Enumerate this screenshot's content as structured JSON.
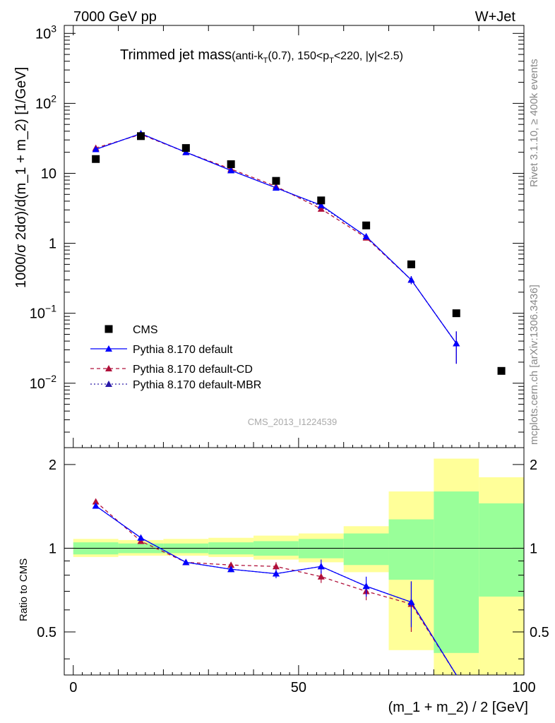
{
  "header": {
    "left": "7000 GeV pp",
    "right": "W+Jet"
  },
  "title": {
    "main": "Trimmed jet mass",
    "sub": "(anti-k",
    "sub_T": "T",
    "sub_rest": "(0.7), 150<p",
    "sub_T2": "T",
    "sub_end": "<220, |y|<2.5)"
  },
  "side_labels": {
    "rivet": "Rivet 3.1.10, ≥ 400k events",
    "mcplots": "mcplots.cern.ch [arXiv:1306.3436]"
  },
  "watermark": "CMS_2013_I1224539",
  "axes": {
    "xlabel": "(m_1 + m_2) / 2 [GeV]",
    "ylabel_main": "1000/σ 2dσ)/d(m_1 + m_2) [1/GeV]",
    "ylabel_ratio": "Ratio to CMS",
    "x_ticks": [
      "0",
      "50",
      "100"
    ],
    "main_y_ticks": [
      {
        "base": "10",
        "exp": "3",
        "value": 1000
      },
      {
        "base": "10",
        "exp": "2",
        "value": 100
      },
      {
        "base": "10",
        "exp": "",
        "value": 10
      },
      {
        "base": "1",
        "exp": "",
        "value": 1
      },
      {
        "base": "10",
        "exp": "−1",
        "value": 0.1
      },
      {
        "base": "10",
        "exp": "−2",
        "value": 0.01
      }
    ],
    "ratio_y_ticks": [
      "2",
      "1",
      "0.5"
    ]
  },
  "legend": [
    {
      "label": "CMS"
    },
    {
      "label": "Pythia 8.170 default"
    },
    {
      "label": "Pythia 8.170 default-CD"
    },
    {
      "label": "Pythia 8.170 default-MBR"
    }
  ],
  "colors": {
    "data": "#000000",
    "default": "#0000ff",
    "cd": "#b0103a",
    "mbr": "#2a1aa8",
    "band_inner": "#99ff99",
    "band_outer": "#ffff99"
  },
  "chart_data": {
    "type": "line",
    "xlim": [
      -2,
      100
    ],
    "ylim_main": [
      0.0012,
      1300
    ],
    "ylog_main": true,
    "ylim_ratio": [
      0.35,
      2.3
    ],
    "ylog_ratio": true,
    "legend_position": "bottom-left",
    "data": {
      "name": "CMS",
      "x": [
        5,
        15,
        25,
        35,
        45,
        55,
        65,
        75,
        85,
        95
      ],
      "y": [
        16,
        34,
        23,
        13.5,
        7.8,
        4.1,
        1.8,
        0.5,
        0.1,
        0.015
      ]
    },
    "series": [
      {
        "name": "Pythia 8.170 default",
        "x": [
          5,
          15,
          25,
          35,
          45,
          55,
          65,
          75,
          85
        ],
        "y": [
          22,
          37,
          20,
          11,
          6.2,
          3.5,
          1.25,
          0.3,
          0.037
        ],
        "yerr": [
          0,
          0,
          0,
          0,
          0,
          0,
          0,
          0.04,
          0.018
        ],
        "ratio": [
          1.42,
          1.09,
          0.89,
          0.84,
          0.81,
          0.86,
          0.73,
          0.64,
          0.3
        ],
        "ratio_err": [
          0,
          0,
          0,
          0.02,
          0.03,
          0.05,
          0.06,
          0.12,
          0
        ]
      },
      {
        "name": "Pythia 8.170 default-CD",
        "x": [
          5,
          15,
          25,
          35,
          45,
          55,
          65,
          75,
          85
        ],
        "y": [
          23,
          36,
          20,
          11.5,
          6.5,
          3.1,
          1.2,
          0.3,
          0.037
        ],
        "yerr": [
          0,
          0,
          0,
          0,
          0,
          0,
          0,
          0.04,
          0.018
        ],
        "ratio": [
          1.47,
          1.06,
          0.89,
          0.87,
          0.86,
          0.79,
          0.7,
          0.63,
          0.3
        ],
        "ratio_err": [
          0,
          0,
          0,
          0.02,
          0.03,
          0.04,
          0.05,
          0.13,
          0
        ]
      },
      {
        "name": "Pythia 8.170 default-MBR",
        "x": [
          5,
          15,
          25,
          35,
          45,
          55,
          65,
          75,
          85
        ],
        "y": [
          22,
          37,
          20,
          11,
          6.2,
          3.4,
          1.25,
          0.3,
          0.037
        ],
        "yerr": [
          0,
          0,
          0,
          0,
          0,
          0,
          0,
          0.04,
          0.018
        ],
        "ratio": [
          1.42,
          1.09,
          0.89,
          0.84,
          0.81,
          0.86,
          0.73,
          0.64,
          0.3
        ],
        "ratio_err": [
          0,
          0,
          0,
          0,
          0,
          0,
          0,
          0,
          0
        ]
      }
    ],
    "bands": {
      "x_edges": [
        0,
        10,
        20,
        30,
        40,
        50,
        60,
        70,
        80,
        90,
        100
      ],
      "inner": [
        [
          0.95,
          1.05
        ],
        [
          0.96,
          1.04
        ],
        [
          0.96,
          1.04
        ],
        [
          0.95,
          1.05
        ],
        [
          0.94,
          1.06
        ],
        [
          0.92,
          1.08
        ],
        [
          0.87,
          1.13
        ],
        [
          0.77,
          1.27
        ],
        [
          0.42,
          1.6
        ],
        [
          0.67,
          1.45
        ]
      ],
      "outer": [
        [
          0.93,
          1.08
        ],
        [
          0.94,
          1.07
        ],
        [
          0.94,
          1.08
        ],
        [
          0.93,
          1.09
        ],
        [
          0.91,
          1.11
        ],
        [
          0.89,
          1.13
        ],
        [
          0.82,
          1.2
        ],
        [
          0.43,
          1.6
        ],
        [
          0.3,
          2.1
        ],
        [
          0.3,
          1.8
        ]
      ]
    }
  }
}
